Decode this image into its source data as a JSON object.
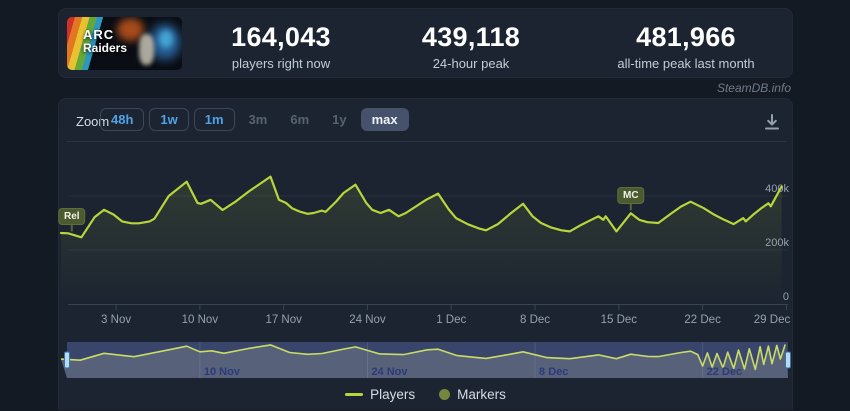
{
  "banner": {
    "title_line1": "ARC",
    "title_line2": "Raiders"
  },
  "stats": {
    "current": {
      "value": "164,043",
      "label": "players right now"
    },
    "peak24h": {
      "value": "439,118",
      "label": "24-hour peak"
    },
    "alltime": {
      "value": "481,966",
      "label": "all-time peak last month"
    }
  },
  "watermark": "SteamDB.info",
  "toolbar": {
    "zoom_label": "Zoom",
    "buttons": [
      {
        "label": "48h",
        "state": "enabled"
      },
      {
        "label": "1w",
        "state": "enabled"
      },
      {
        "label": "1m",
        "state": "enabled"
      },
      {
        "label": "3m",
        "state": "disabled"
      },
      {
        "label": "6m",
        "state": "disabled"
      },
      {
        "label": "1y",
        "state": "disabled"
      },
      {
        "label": "max",
        "state": "selected"
      }
    ]
  },
  "legend": [
    {
      "label": "Players",
      "color": "#b9d53c"
    },
    {
      "label": "Markers",
      "color": "#75873f"
    }
  ],
  "chart_data": {
    "type": "line",
    "title": "ARC Raiders concurrent players",
    "series": [
      {
        "name": "Players",
        "color": "#b9d53c",
        "points_day_players": [
          [
            -0.6,
            263000
          ],
          [
            0,
            262000
          ],
          [
            1.1,
            247000
          ],
          [
            2.2,
            321000
          ],
          [
            3,
            349000
          ],
          [
            3.8,
            331000
          ],
          [
            4.5,
            306000
          ],
          [
            5.3,
            299000
          ],
          [
            5.9,
            299000
          ],
          [
            6.8,
            306000
          ],
          [
            7.2,
            316000
          ],
          [
            8.4,
            400000
          ],
          [
            9.9,
            453000
          ],
          [
            10.8,
            374000
          ],
          [
            11.1,
            371000
          ],
          [
            11.9,
            386000
          ],
          [
            12.9,
            348000
          ],
          [
            14,
            380000
          ],
          [
            15.1,
            417000
          ],
          [
            16.9,
            472000
          ],
          [
            17.6,
            386000
          ],
          [
            18.2,
            374000
          ],
          [
            18.7,
            355000
          ],
          [
            19.3,
            343000
          ],
          [
            20,
            334000
          ],
          [
            20.5,
            337000
          ],
          [
            21.2,
            346000
          ],
          [
            21.5,
            341000
          ],
          [
            22.4,
            380000
          ],
          [
            23,
            411000
          ],
          [
            24,
            442000
          ],
          [
            24.9,
            374000
          ],
          [
            25.4,
            349000
          ],
          [
            26.1,
            337000
          ],
          [
            26.8,
            349000
          ],
          [
            27.6,
            325000
          ],
          [
            28.2,
            337000
          ],
          [
            29.9,
            386000
          ],
          [
            30.9,
            409000
          ],
          [
            31.8,
            350000
          ],
          [
            32.4,
            318000
          ],
          [
            33.4,
            295000
          ],
          [
            34.3,
            280000
          ],
          [
            34.9,
            273000
          ],
          [
            35.9,
            296000
          ],
          [
            37,
            337000
          ],
          [
            38,
            371000
          ],
          [
            38.8,
            325000
          ],
          [
            39.5,
            300000
          ],
          [
            40.3,
            284000
          ],
          [
            41.2,
            273000
          ],
          [
            41.9,
            269000
          ],
          [
            42.9,
            294000
          ],
          [
            43.7,
            312000
          ],
          [
            44.3,
            325000
          ],
          [
            44.7,
            312000
          ],
          [
            44.9,
            325000
          ],
          [
            45.8,
            269000
          ],
          [
            47,
            336000
          ],
          [
            47.7,
            312000
          ],
          [
            48.4,
            303000
          ],
          [
            49.3,
            300000
          ],
          [
            50.4,
            336000
          ],
          [
            51.2,
            361000
          ],
          [
            52,
            379000
          ],
          [
            53.1,
            355000
          ],
          [
            54,
            330000
          ],
          [
            54.8,
            312000
          ],
          [
            55.6,
            296000
          ],
          [
            56.4,
            318000
          ],
          [
            56.6,
            306000
          ],
          [
            57.2,
            330000
          ],
          [
            57.9,
            355000
          ],
          [
            58.5,
            373000
          ],
          [
            58.7,
            362000
          ],
          [
            59.6,
            435000
          ]
        ]
      }
    ],
    "markers": [
      {
        "label": "Rel",
        "day": 0.3
      },
      {
        "label": "MC",
        "day": 47
      }
    ],
    "x_axis": {
      "tick_labels": [
        "3 Nov",
        "10 Nov",
        "17 Nov",
        "24 Nov",
        "1 Dec",
        "8 Dec",
        "15 Dec",
        "22 Dec",
        "29 Dec"
      ],
      "tick_days": [
        4,
        11,
        18,
        25,
        32,
        39,
        46,
        53,
        60
      ]
    },
    "y_axis": {
      "ticks": [
        {
          "label": "0",
          "players": 0
        },
        {
          "label": "200k",
          "players": 200000
        },
        {
          "label": "400k",
          "players": 400000
        }
      ],
      "ylim": [
        0,
        590000
      ]
    },
    "navigator": {
      "labels": [
        {
          "label": "10 Nov",
          "day": 11
        },
        {
          "label": "24 Nov",
          "day": 25
        },
        {
          "label": "8 Dec",
          "day": 39
        },
        {
          "label": "22 Dec",
          "day": 53
        }
      ],
      "points_day_players": [
        [
          -0.6,
          263000
        ],
        [
          1,
          247000
        ],
        [
          3,
          349000
        ],
        [
          5.5,
          299000
        ],
        [
          8.4,
          400000
        ],
        [
          9.9,
          453000
        ],
        [
          11,
          371000
        ],
        [
          12,
          386000
        ],
        [
          13,
          348000
        ],
        [
          15,
          417000
        ],
        [
          16.9,
          472000
        ],
        [
          18.5,
          360000
        ],
        [
          20,
          334000
        ],
        [
          21.2,
          346000
        ],
        [
          23,
          411000
        ],
        [
          24,
          442000
        ],
        [
          26,
          340000
        ],
        [
          28,
          330000
        ],
        [
          30,
          400000
        ],
        [
          30.9,
          409000
        ],
        [
          32.5,
          315000
        ],
        [
          34.9,
          273000
        ],
        [
          37,
          337000
        ],
        [
          38,
          371000
        ],
        [
          40,
          286000
        ],
        [
          41.9,
          269000
        ],
        [
          44.3,
          325000
        ],
        [
          45.8,
          269000
        ],
        [
          47,
          336000
        ],
        [
          48.4,
          303000
        ],
        [
          49.3,
          300000
        ],
        [
          51.2,
          361000
        ],
        [
          52,
          379000
        ],
        [
          52.6,
          330000
        ],
        [
          53,
          160000
        ],
        [
          53.4,
          355000
        ],
        [
          53.8,
          145000
        ],
        [
          54.2,
          345000
        ],
        [
          54.7,
          135000
        ],
        [
          55.1,
          365000
        ],
        [
          55.6,
          125000
        ],
        [
          56,
          395000
        ],
        [
          56.5,
          118000
        ],
        [
          56.9,
          415000
        ],
        [
          57.4,
          112000
        ],
        [
          57.8,
          445000
        ],
        [
          58.1,
          185000
        ],
        [
          58.5,
          455000
        ],
        [
          58.8,
          195000
        ],
        [
          59.2,
          465000
        ],
        [
          59.5,
          265000
        ],
        [
          59.9,
          478000
        ]
      ]
    },
    "colors": {
      "line": "#b9d53c",
      "grid": "#273140",
      "axis": "#39434f",
      "axis_label": "#94a1ae",
      "marker_badge": "#4c5a2f",
      "navigator_mask": "#39456a",
      "navigator_area": "#57617a",
      "navigator_line": "#c9dc66",
      "navigator_label": "#2c3a78",
      "navigator_handle": "#b7d9f2"
    }
  }
}
